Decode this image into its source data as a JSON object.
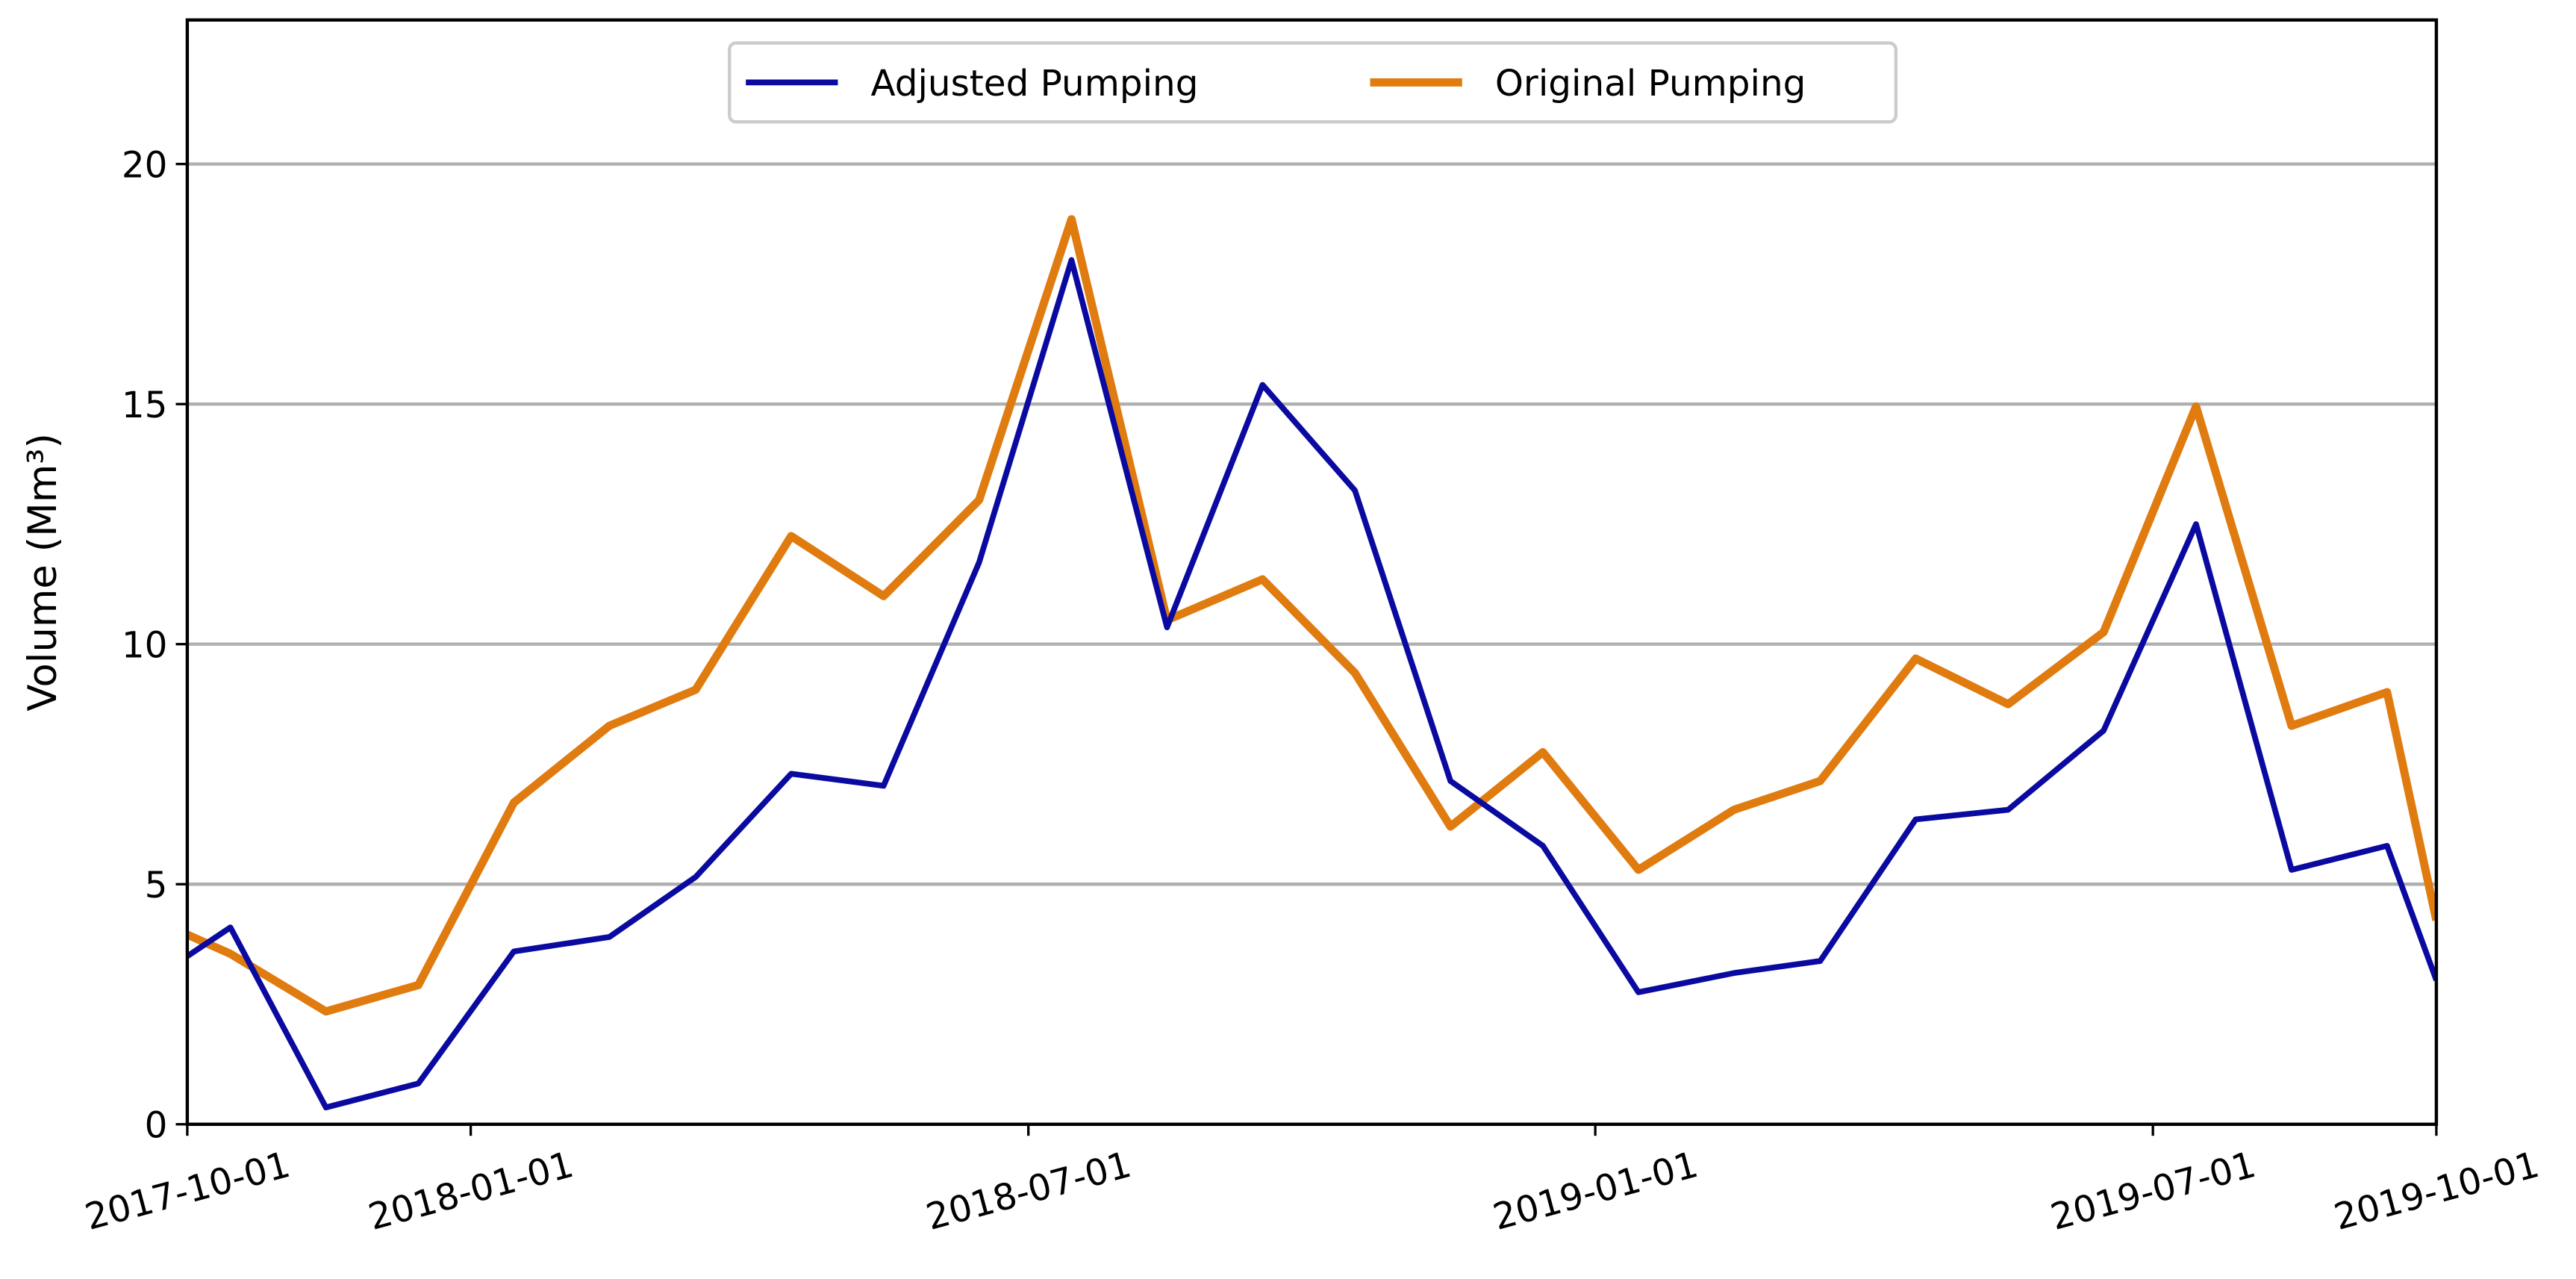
{
  "chart_data": {
    "type": "line",
    "y_label": "Volume (Mm³)",
    "x": [
      "2017-10-01",
      "2017-10-15",
      "2017-11-15",
      "2017-12-15",
      "2018-01-15",
      "2018-02-15",
      "2018-03-15",
      "2018-04-15",
      "2018-05-15",
      "2018-06-15",
      "2018-07-15",
      "2018-08-15",
      "2018-09-15",
      "2018-10-15",
      "2018-11-15",
      "2018-12-15",
      "2019-01-15",
      "2019-02-15",
      "2019-03-15",
      "2019-04-15",
      "2019-05-15",
      "2019-06-15",
      "2019-07-15",
      "2019-08-15",
      "2019-09-15",
      "2019-10-01"
    ],
    "series": [
      {
        "name": "Adjusted Pumping",
        "color": "#0a0aa0",
        "values": [
          3.5,
          4.1,
          0.35,
          0.85,
          3.6,
          3.9,
          5.15,
          7.3,
          7.05,
          11.7,
          18.0,
          10.35,
          15.4,
          13.2,
          7.15,
          5.8,
          2.75,
          3.15,
          3.4,
          6.35,
          6.55,
          8.2,
          12.5,
          5.3,
          5.8,
          3.0
        ]
      },
      {
        "name": "Original Pumping",
        "color": "#e07b10",
        "values": [
          3.95,
          3.55,
          2.35,
          2.9,
          6.7,
          8.3,
          9.05,
          12.25,
          11.0,
          13.0,
          18.85,
          10.5,
          11.35,
          9.4,
          6.2,
          7.75,
          5.3,
          6.55,
          7.15,
          9.7,
          8.75,
          10.25,
          14.95,
          8.3,
          9.0,
          4.25
        ]
      }
    ],
    "xlim": [
      "2017-10-01",
      "2019-10-01"
    ],
    "xticks": [
      "2017-10-01",
      "2018-01-01",
      "2018-07-01",
      "2019-01-01",
      "2019-07-01",
      "2019-10-01"
    ],
    "ylim": [
      0,
      23
    ],
    "yticks": [
      0,
      5,
      10,
      15,
      20
    ],
    "grid": true,
    "legend": "top"
  }
}
